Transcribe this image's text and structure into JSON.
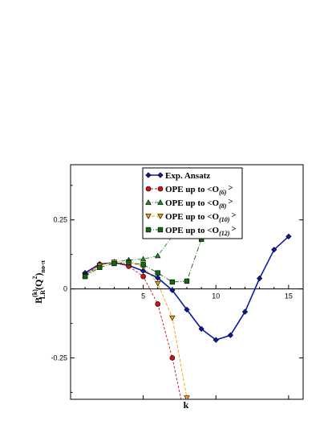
{
  "chart_data": {
    "type": "line",
    "xlabel": "k",
    "ylabel_parts": {
      "main": "B",
      "sup": "(k)",
      "sub": "LR",
      "paren": "(Q",
      "sup2": "2",
      "tail": ")",
      "sub2": "no-π"
    },
    "xlim": [
      0,
      16
    ],
    "ylim": [
      -0.4,
      0.45
    ],
    "xticks": [
      5,
      10,
      15
    ],
    "yticks": [
      0.25,
      0,
      -0.25
    ],
    "ytick_labels": [
      "0.25",
      "0",
      "-0.25"
    ],
    "grid": false,
    "legend_placement": "top-center",
    "series": [
      {
        "name": "Exp. Ansatz",
        "legend_main": "Exp. Ansatz",
        "color": "#0a1aa0",
        "marker": "diamond",
        "dash": "none",
        "x": [
          1,
          2,
          3,
          4,
          5,
          6,
          7,
          8,
          9,
          10,
          11,
          12,
          13,
          14,
          15
        ],
        "y": [
          0.058,
          0.09,
          0.095,
          0.085,
          0.065,
          0.04,
          -0.005,
          -0.075,
          -0.145,
          -0.185,
          -0.168,
          -0.083,
          0.038,
          0.142,
          0.19
        ]
      },
      {
        "name": "OPE up to <O(6)>",
        "legend_main": "OPE up to <O",
        "legend_sub": "(6)",
        "legend_end": ">",
        "color": "#cc1111",
        "marker": "circle",
        "dash": "3,2",
        "x": [
          1,
          2,
          3,
          4,
          5,
          6,
          7,
          7.6
        ],
        "y": [
          0.05,
          0.088,
          0.095,
          0.082,
          0.045,
          -0.055,
          -0.25,
          -0.4
        ]
      },
      {
        "name": "OPE up to <O(8)>",
        "legend_main": "OPE up to <O",
        "legend_sub": "(8)",
        "legend_end": ">",
        "color": "#1f8f1f",
        "marker": "triangle-up",
        "dash": "5,2,1,2",
        "x": [
          1,
          2,
          3,
          4,
          5,
          6,
          7,
          8.2
        ],
        "y": [
          0.048,
          0.085,
          0.098,
          0.105,
          0.108,
          0.12,
          0.19,
          0.45
        ]
      },
      {
        "name": "OPE up to <O(10)>",
        "legend_main": "OPE up to <O",
        "legend_sub": "(10)",
        "legend_end": ">",
        "color": "#ff9900",
        "marker": "triangle-down",
        "dash": "4,2",
        "x": [
          1,
          2,
          3,
          4,
          5,
          6,
          7,
          8
        ],
        "y": [
          0.048,
          0.085,
          0.097,
          0.098,
          0.08,
          0.02,
          -0.105,
          -0.395
        ]
      },
      {
        "name": "OPE up to <O(12)>",
        "legend_main": "OPE up to <O",
        "legend_sub": "(12)",
        "legend_end": ">",
        "color": "#0f6a0f",
        "marker": "square",
        "dash": "6,2,1,2",
        "x": [
          1,
          2,
          3,
          4,
          5,
          6,
          7,
          8,
          9
        ],
        "y": [
          0.045,
          0.078,
          0.092,
          0.095,
          0.088,
          0.058,
          0.025,
          0.028,
          0.18
        ]
      }
    ]
  }
}
